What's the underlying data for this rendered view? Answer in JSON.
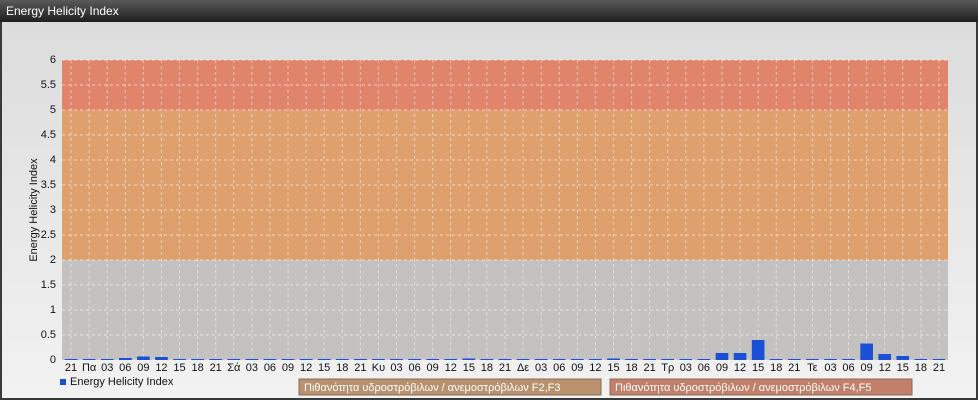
{
  "chart_data": {
    "type": "bar",
    "title": "Energy Helicity Index",
    "y_label": "Energy Helicity Index",
    "categories": [
      "21",
      "Πα",
      "03",
      "06",
      "09",
      "12",
      "15",
      "18",
      "21",
      "Σά",
      "03",
      "06",
      "09",
      "12",
      "15",
      "18",
      "21",
      "Κυ",
      "03",
      "06",
      "09",
      "12",
      "15",
      "18",
      "21",
      "Δε",
      "03",
      "06",
      "09",
      "12",
      "15",
      "18",
      "21",
      "Τρ",
      "03",
      "06",
      "09",
      "12",
      "15",
      "18",
      "21",
      "Τε",
      "03",
      "06",
      "09",
      "12",
      "15",
      "18",
      "21"
    ],
    "series": [
      {
        "name": "Energy Helicity Index",
        "color": "#1a4fd6",
        "values": [
          0.02,
          0.02,
          0.02,
          0.04,
          0.07,
          0.06,
          0.02,
          0.02,
          0.02,
          0.02,
          0.02,
          0.02,
          0.02,
          0.02,
          0.02,
          0.02,
          0.02,
          0.02,
          0.02,
          0.02,
          0.02,
          0.02,
          0.03,
          0.02,
          0.02,
          0.02,
          0.02,
          0.02,
          0.02,
          0.02,
          0.03,
          0.02,
          0.02,
          0.02,
          0.02,
          0.02,
          0.14,
          0.14,
          0.4,
          0.02,
          0.02,
          0.02,
          0.02,
          0.02,
          0.33,
          0.12,
          0.08,
          0.02,
          0.02
        ]
      }
    ],
    "bands": [
      {
        "from": 0,
        "to": 2,
        "color": "#c3c2c0"
      },
      {
        "from": 2,
        "to": 5,
        "color": "#dea06c",
        "legend_color": "#b8916e",
        "label": "Πιθανότητα υδροστρόβιλων / ανεμοστρόβιλων F2,F3"
      },
      {
        "from": 5,
        "to": 6,
        "color": "#e0846c",
        "legend_color": "#c27f6a",
        "label": "Πιθανότητα υδροστρόβιλων / ανεμοστρόβιλων F4,F5"
      }
    ],
    "ylim": [
      0,
      6
    ],
    "yticks": [
      0,
      0.5,
      1,
      1.5,
      2,
      2.5,
      3,
      3.5,
      4,
      4.5,
      5,
      5.5,
      6
    ],
    "grid": true
  }
}
